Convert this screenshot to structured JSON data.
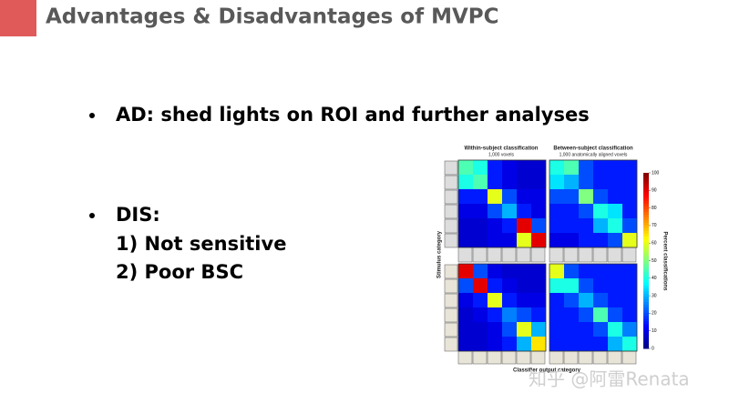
{
  "header": {
    "title": "Advantages & Disadvantages of MVPC"
  },
  "bullets": [
    {
      "lines": [
        "AD: shed lights on ROI and further analyses"
      ]
    },
    {
      "lines": [
        "DIS:",
        "1)  Not sensitive",
        "2)  Poor BSC"
      ]
    }
  ],
  "figure": {
    "titles": [
      {
        "title": "Within-subject classification",
        "subtitle": "1,000 voxels"
      },
      {
        "title": "Between-subject classification",
        "subtitle": "1,000 anatomically aligned voxels"
      }
    ],
    "y_label": "Stimulus category",
    "x_label": "Classifier output category",
    "panels": [
      {
        "matrix": [
          [
            45,
            40,
            15,
            10,
            8,
            8
          ],
          [
            40,
            45,
            15,
            10,
            8,
            8
          ],
          [
            15,
            15,
            60,
            20,
            10,
            10
          ],
          [
            10,
            10,
            20,
            30,
            15,
            10
          ],
          [
            8,
            8,
            10,
            15,
            90,
            20
          ],
          [
            8,
            8,
            10,
            10,
            60,
            90
          ]
        ]
      },
      {
        "matrix": [
          [
            40,
            45,
            20,
            15,
            15,
            15
          ],
          [
            35,
            30,
            20,
            15,
            15,
            15
          ],
          [
            20,
            20,
            50,
            20,
            15,
            15
          ],
          [
            15,
            15,
            20,
            40,
            35,
            15
          ],
          [
            15,
            15,
            15,
            30,
            40,
            20
          ],
          [
            10,
            10,
            15,
            15,
            20,
            60
          ]
        ]
      },
      {
        "matrix": [
          [
            90,
            20,
            10,
            8,
            8,
            8
          ],
          [
            20,
            90,
            15,
            10,
            8,
            8
          ],
          [
            10,
            15,
            60,
            15,
            10,
            10
          ],
          [
            8,
            10,
            15,
            25,
            20,
            15
          ],
          [
            8,
            8,
            10,
            20,
            60,
            30
          ],
          [
            8,
            8,
            10,
            15,
            30,
            65
          ]
        ]
      },
      {
        "matrix": [
          [
            60,
            20,
            15,
            15,
            15,
            15
          ],
          [
            40,
            40,
            20,
            15,
            15,
            15
          ],
          [
            15,
            20,
            30,
            20,
            15,
            15
          ],
          [
            15,
            15,
            20,
            45,
            20,
            15
          ],
          [
            15,
            15,
            15,
            20,
            40,
            25
          ],
          [
            15,
            15,
            15,
            15,
            30,
            40
          ]
        ]
      }
    ],
    "colorbar": {
      "label": "Percent classifications",
      "lim": [
        0,
        100
      ],
      "ticks": [
        0,
        10,
        20,
        30,
        40,
        50,
        60,
        70,
        80,
        90,
        100
      ]
    }
  },
  "watermark": "知乎 @阿雷Renata"
}
